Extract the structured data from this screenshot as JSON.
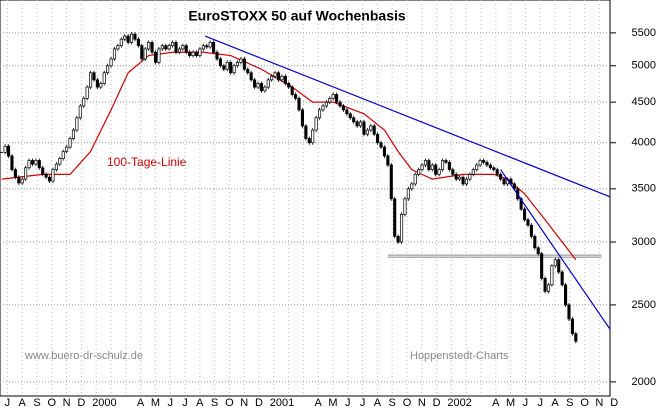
{
  "chart_data": {
    "type": "candlestick",
    "title": "EuroSTOXX 50 auf Wochenbasis",
    "x_labels": [
      "J",
      "A",
      "S",
      "O",
      "N",
      "D",
      "2000",
      null,
      null,
      "A",
      "M",
      "J",
      "J",
      "A",
      "S",
      "O",
      "N",
      "D",
      "2001",
      null,
      null,
      "A",
      "M",
      "J",
      "J",
      "A",
      "S",
      "O",
      "N",
      "D",
      "2002",
      null,
      null,
      "A",
      "M",
      "J",
      "J",
      "A",
      "S",
      "O",
      "N",
      "D"
    ],
    "series": [
      {
        "values": [
          3890,
          3960,
          3850,
          3700,
          3620,
          3560,
          3600,
          3720,
          3800,
          3760,
          3800,
          3720,
          3650,
          3620,
          3580,
          3700,
          3760,
          3820,
          3900,
          3950,
          4050,
          4150,
          4300,
          4450,
          4550,
          4700,
          4900,
          4800,
          4700,
          4750,
          4900,
          5000,
          5100,
          5250,
          5300,
          5400,
          5450,
          5350,
          5480,
          5400,
          5300,
          5100,
          5250,
          5350,
          5200,
          5050,
          5250,
          5300,
          5250,
          5300,
          5350,
          5200,
          5250,
          5300,
          5200,
          5150,
          5200,
          5150,
          5250,
          5300,
          5280,
          5350,
          5200,
          5100,
          5000,
          4950,
          5050,
          4900,
          5000,
          5050,
          5100,
          4950,
          4900,
          4800,
          4700,
          4750,
          4650,
          4700,
          4800,
          4850,
          4900,
          4800,
          4850,
          4750,
          4700,
          4600,
          4550,
          4400,
          4200,
          4050,
          4000,
          4150,
          4300,
          4400,
          4450,
          4500,
          4550,
          4600,
          4500,
          4450,
          4400,
          4350,
          4300,
          4250,
          4200,
          4250,
          4100,
          4150,
          4200,
          4100,
          4000,
          3950,
          3850,
          3750,
          3400,
          3050,
          3000,
          3250,
          3400,
          3500,
          3550,
          3650,
          3700,
          3750,
          3800,
          3700,
          3750,
          3650,
          3700,
          3800,
          3780,
          3700,
          3650,
          3600,
          3620,
          3550,
          3600,
          3650,
          3700,
          3750,
          3800,
          3780,
          3750,
          3720,
          3700,
          3650,
          3600,
          3550,
          3600,
          3550,
          3500,
          3400,
          3300,
          3200,
          3150,
          3050,
          2950,
          2900,
          2700,
          2600,
          2650,
          2800,
          2850,
          2750,
          2650,
          2500,
          2400,
          2300,
          2250
        ]
      }
    ],
    "ma": {
      "name": "100-Tage-Linie",
      "color": "#cc0000",
      "x": [
        0,
        12,
        20,
        26,
        32,
        37,
        43,
        50,
        59,
        67,
        76,
        85,
        91,
        97,
        106,
        112,
        116,
        120,
        126,
        135,
        144,
        148,
        153,
        159,
        164,
        168
      ],
      "values": [
        3600,
        3650,
        3650,
        3900,
        4400,
        4900,
        5150,
        5200,
        5200,
        5150,
        4950,
        4700,
        4500,
        4500,
        4350,
        4150,
        3900,
        3700,
        3600,
        3650,
        3650,
        3600,
        3450,
        3200,
        3000,
        2850
      ]
    },
    "trendlines": [
      {
        "color": "#0000cc",
        "x": [
          59.5,
          178
        ],
        "values": [
          5450,
          3420
        ]
      },
      {
        "color": "#0000cc",
        "x": [
          146,
          178
        ],
        "values": [
          3700,
          2330
        ]
      }
    ],
    "support": {
      "color": "#888888",
      "x": [
        113,
        175.5
      ],
      "values": [
        2880,
        2880
      ]
    },
    "annotations": [
      "www.buero-dr-schulz.de",
      "Hoppenstedt-Charts"
    ],
    "xlim": [
      -0.5,
      178
    ],
    "ylim": [
      1920,
      6050
    ],
    "yticks": [
      2000,
      2500,
      3000,
      3500,
      4000,
      4500,
      5000,
      5500
    ],
    "log_scale": true,
    "grid": true
  }
}
